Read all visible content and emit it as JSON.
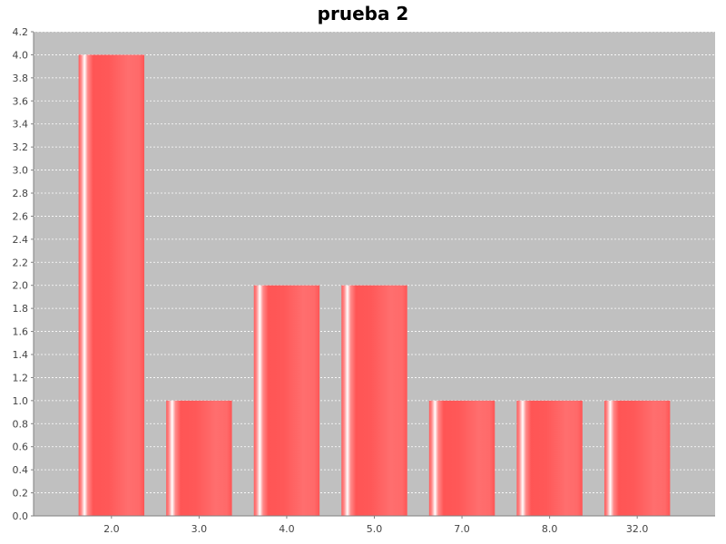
{
  "chart_data": {
    "type": "bar",
    "title": "prueba 2",
    "xlabel": "",
    "ylabel": "",
    "categories": [
      "2.0",
      "3.0",
      "4.0",
      "5.0",
      "7.0",
      "8.0",
      "32.0"
    ],
    "values": [
      4.0,
      1.0,
      2.0,
      2.0,
      1.0,
      1.0,
      1.0
    ],
    "ylim": [
      0.0,
      4.2
    ],
    "yticks": [
      "0.0",
      "0.2",
      "0.4",
      "0.6",
      "0.8",
      "1.0",
      "1.2",
      "1.4",
      "1.6",
      "1.8",
      "2.0",
      "2.2",
      "2.4",
      "2.6",
      "2.8",
      "3.0",
      "3.2",
      "3.4",
      "3.6",
      "3.8",
      "4.0",
      "4.2"
    ],
    "grid": true,
    "legend": "none",
    "colors": {
      "bar": "#ff5555",
      "bar_highlight": "#ffffff",
      "plot_background": "#c0c0c0",
      "gridline": "#ffffff",
      "axis": "#808080"
    }
  }
}
